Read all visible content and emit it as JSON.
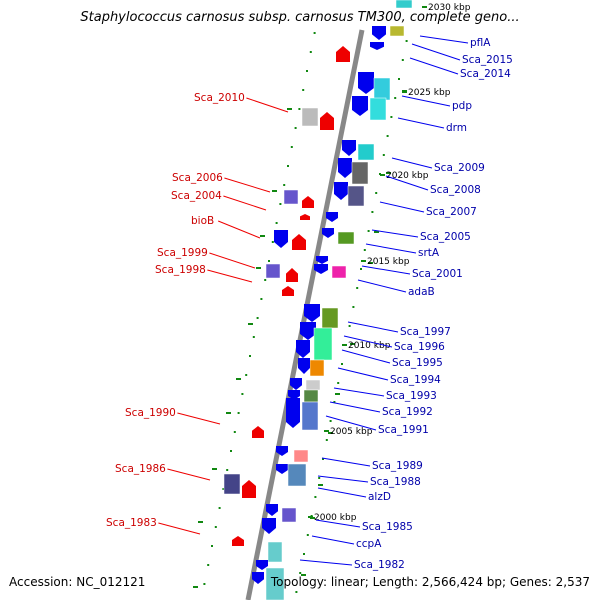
{
  "title": "Staphylococcus carnosus subsp. carnosus TM300, complete geno...",
  "footer": {
    "accession": "Accession: NC_012121",
    "summary": "Topology: linear; Length: 2,566,424 bp; Genes: 2,537"
  },
  "colors": {
    "forward_gene": "#0000ee",
    "reverse_gene": "#ee0000",
    "backbone": "#888888",
    "tick": "#118811",
    "label_left": "#cc0000",
    "label_right": "#0000aa"
  },
  "kbp_markers": [
    "2030 kbp",
    "2025 kbp",
    "2020 kbp",
    "2015 kbp",
    "2010 kbp",
    "2005 kbp",
    "2000 kbp"
  ],
  "left_labels": [
    "Sca_2010",
    "Sca_2006",
    "Sca_2004",
    "bioB",
    "Sca_1999",
    "Sca_1998",
    "Sca_1990",
    "Sca_1986",
    "Sca_1983"
  ],
  "right_labels": [
    "pflA",
    "Sca_2015",
    "Sca_2014",
    "pdp",
    "drm",
    "Sca_2009",
    "Sca_2008",
    "Sca_2007",
    "Sca_2005",
    "srtA",
    "Sca_2001",
    "adaB",
    "Sca_1997",
    "Sca_1996",
    "Sca_1995",
    "Sca_1994",
    "Sca_1993",
    "Sca_1992",
    "Sca_1991",
    "Sca_1989",
    "Sca_1988",
    "alzD",
    "Sca_1985",
    "ccpA",
    "Sca_1982"
  ]
}
